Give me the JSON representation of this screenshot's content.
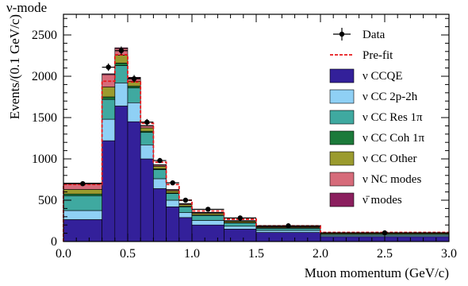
{
  "header": {
    "mode_label": "ν-mode"
  },
  "chart_data": {
    "type": "bar",
    "stacked": true,
    "xlabel": "Muon momentum (GeV/c)",
    "ylabel": "Events/(0.1 GeV/c)",
    "xlim": [
      0,
      3.0
    ],
    "ylim": [
      0,
      2750
    ],
    "xticks": [
      0.0,
      0.5,
      1.0,
      1.5,
      2.0,
      2.5,
      3.0
    ],
    "xtick_labels": [
      "0.0",
      "0.5",
      "1.0",
      "1.5",
      "2.0",
      "2.5",
      "3.0"
    ],
    "yticks": [
      0,
      500,
      1000,
      1500,
      2000,
      2500
    ],
    "ytick_labels": [
      "0",
      "500",
      "1000",
      "1500",
      "2000",
      "2500"
    ],
    "bin_edges": [
      0.0,
      0.3,
      0.4,
      0.5,
      0.6,
      0.7,
      0.8,
      0.9,
      1.0,
      1.25,
      1.5,
      2.0,
      3.0
    ],
    "series": [
      {
        "name": "ν CCQE",
        "color": "#33209a",
        "values": [
          265,
          1220,
          1640,
          1450,
          1000,
          640,
          420,
          290,
          200,
          150,
          110,
          60
        ]
      },
      {
        "name": "ν CC 2p-2h",
        "color": "#8fd0f5",
        "values": [
          110,
          260,
          280,
          230,
          170,
          120,
          80,
          60,
          55,
          35,
          25,
          15
        ]
      },
      {
        "name": "ν CC Res 1π",
        "color": "#3fa9a0",
        "values": [
          180,
          240,
          210,
          180,
          150,
          110,
          80,
          70,
          60,
          40,
          25,
          12
        ]
      },
      {
        "name": "ν CC Coh 1π",
        "color": "#1c7a3a",
        "values": [
          20,
          30,
          30,
          20,
          15,
          10,
          8,
          6,
          6,
          4,
          3,
          2
        ]
      },
      {
        "name": "ν CC Other",
        "color": "#9b9b2e",
        "values": [
          55,
          120,
          95,
          60,
          40,
          30,
          25,
          20,
          20,
          15,
          10,
          10
        ]
      },
      {
        "name": "ν NC modes",
        "color": "#d66b7a",
        "values": [
          70,
          150,
          80,
          40,
          25,
          15,
          12,
          10,
          8,
          6,
          4,
          3
        ]
      },
      {
        "name": "ν̄ modes",
        "color": "#8b1f5e",
        "values": [
          8,
          10,
          10,
          8,
          5,
          5,
          5,
          4,
          4,
          3,
          2,
          1
        ]
      }
    ],
    "prefit": [
      690,
      1940,
      2260,
      1930,
      1430,
      960,
      690,
      500,
      370,
      270,
      190,
      110
    ],
    "data_points": {
      "name": "Data",
      "x": [
        0.15,
        0.35,
        0.45,
        0.55,
        0.65,
        0.75,
        0.85,
        0.95,
        1.125,
        1.375,
        1.75,
        2.5
      ],
      "y": [
        700,
        2110,
        2310,
        1970,
        1445,
        980,
        710,
        500,
        390,
        285,
        190,
        105
      ],
      "yerr": [
        25,
        45,
        50,
        45,
        38,
        31,
        27,
        22,
        20,
        17,
        14,
        10
      ]
    },
    "legend": {
      "placement": "top-right",
      "entries": [
        "Data",
        "Pre-fit",
        "ν CCQE",
        "ν CC 2p-2h",
        "ν CC Res 1π",
        "ν CC Coh 1π",
        "ν CC Other",
        "ν NC modes",
        "ν̄ modes"
      ]
    }
  }
}
